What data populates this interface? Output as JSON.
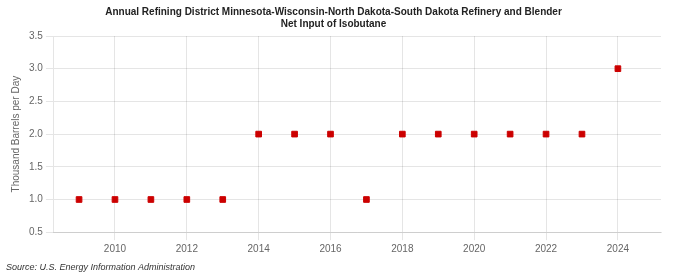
{
  "chart_data": {
    "type": "scatter",
    "title": "Annual Refining District Minnesota-Wisconsin-North Dakota-South Dakota Refinery and Blender\nNet Input of Isobutane",
    "y_label": "Thousand Barrels per Day",
    "annotations": [
      "Source: U.S. Energy Information Administration"
    ],
    "x": [
      2009,
      2010,
      2011,
      2012,
      2013,
      2014,
      2015,
      2016,
      2017,
      2018,
      2019,
      2020,
      2021,
      2022,
      2023,
      2024
    ],
    "values": [
      1.0,
      1.0,
      1.0,
      1.0,
      1.0,
      2.0,
      2.0,
      2.0,
      1.0,
      2.0,
      2.0,
      2.0,
      2.0,
      2.0,
      2.0,
      3.0
    ],
    "color": "#cc0000",
    "marker": "square",
    "xlim": [
      2008.3,
      2025.2
    ],
    "xticks": [
      2010,
      2012,
      2014,
      2016,
      2018,
      2020,
      2022,
      2024
    ],
    "ylim": [
      0.5,
      3.5
    ],
    "yticks": [
      0.5,
      {
        "value": 1.0,
        "label": "1.0"
      },
      1.5,
      {
        "value": 2.0,
        "label": "2.0"
      },
      2.5,
      {
        "value": 3.0,
        "label": "3.0"
      },
      3.5
    ],
    "grid": true
  }
}
